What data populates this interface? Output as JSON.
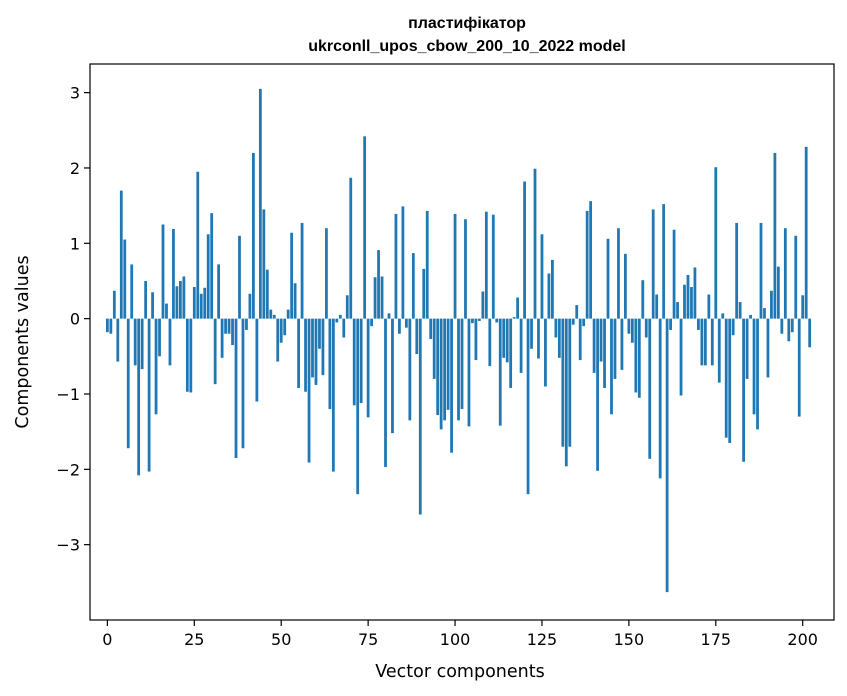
{
  "chart_data": {
    "type": "bar",
    "title_lines": [
      "пластифікатор",
      "ukrconll_upos_cbow_200_10_2022 model"
    ],
    "xlabel": "Vector components",
    "ylabel": "Components values",
    "xlim": [
      -5,
      209
    ],
    "ylim": [
      -4.0,
      3.38
    ],
    "x_ticks": [
      0,
      25,
      50,
      75,
      100,
      125,
      150,
      175,
      200
    ],
    "y_ticks": [
      -3,
      -2,
      -1,
      0,
      1,
      2,
      3
    ],
    "grid": false,
    "legend": "none",
    "bar_color": "#1f77b4",
    "values": [
      -0.18,
      -0.2,
      0.37,
      -0.57,
      1.7,
      1.05,
      -1.72,
      0.72,
      -0.62,
      -2.08,
      -0.67,
      0.5,
      -2.03,
      0.35,
      -1.27,
      -0.5,
      1.25,
      0.2,
      -0.62,
      1.19,
      0.43,
      0.5,
      0.56,
      -0.97,
      -0.98,
      0.42,
      1.95,
      0.33,
      0.41,
      1.12,
      1.4,
      -0.87,
      0.72,
      -0.52,
      -0.2,
      -0.2,
      -0.35,
      -1.85,
      1.1,
      -1.72,
      -0.15,
      0.33,
      2.2,
      -1.1,
      3.05,
      1.45,
      0.65,
      0.12,
      0.05,
      -0.57,
      -0.32,
      -0.22,
      0.12,
      1.14,
      0.47,
      -0.92,
      1.27,
      -0.97,
      -1.91,
      -0.78,
      -0.88,
      -0.4,
      -0.75,
      1.2,
      -1.2,
      -2.03,
      -0.05,
      0.05,
      -0.25,
      0.31,
      1.87,
      -1.15,
      -2.33,
      -1.12,
      2.42,
      -1.31,
      -0.1,
      0.55,
      0.91,
      0.56,
      -1.97,
      0.07,
      -1.52,
      1.39,
      -0.2,
      1.49,
      -0.12,
      -1.35,
      0.87,
      -0.47,
      -2.6,
      0.66,
      1.43,
      -0.27,
      -0.8,
      -1.28,
      -1.47,
      -1.35,
      -1.21,
      -1.78,
      1.39,
      -1.35,
      -1.2,
      1.32,
      -1.43,
      -0.06,
      -0.55,
      -0.03,
      0.36,
      1.42,
      -0.63,
      1.38,
      -0.05,
      -1.42,
      -0.52,
      -0.58,
      -0.92,
      0.02,
      0.28,
      -0.72,
      1.82,
      -2.33,
      -0.4,
      1.99,
      -0.53,
      1.12,
      -0.9,
      0.6,
      0.78,
      -0.25,
      -0.52,
      -1.7,
      -1.96,
      -1.7,
      -0.08,
      0.18,
      -0.55,
      -0.1,
      1.43,
      1.56,
      -0.72,
      -2.02,
      -0.57,
      -0.92,
      1.06,
      -1.27,
      -0.8,
      1.2,
      -0.68,
      0.86,
      -0.2,
      -0.32,
      -0.98,
      -1.05,
      0.51,
      -0.25,
      -1.86,
      1.45,
      0.32,
      -2.12,
      1.52,
      -3.63,
      -0.15,
      1.18,
      0.22,
      -1.02,
      0.45,
      0.58,
      0.42,
      0.68,
      -0.15,
      -0.62,
      -0.62,
      0.32,
      -0.62,
      2.01,
      -0.85,
      0.07,
      -1.58,
      -1.65,
      -0.22,
      1.27,
      0.22,
      -1.9,
      -0.8,
      0.05,
      -1.27,
      -1.47,
      1.27,
      0.14,
      -0.78,
      0.37,
      2.2,
      0.69,
      -0.2,
      1.2,
      -0.3,
      -0.18,
      1.1,
      -1.3,
      0.31,
      2.28,
      -0.38
    ]
  }
}
